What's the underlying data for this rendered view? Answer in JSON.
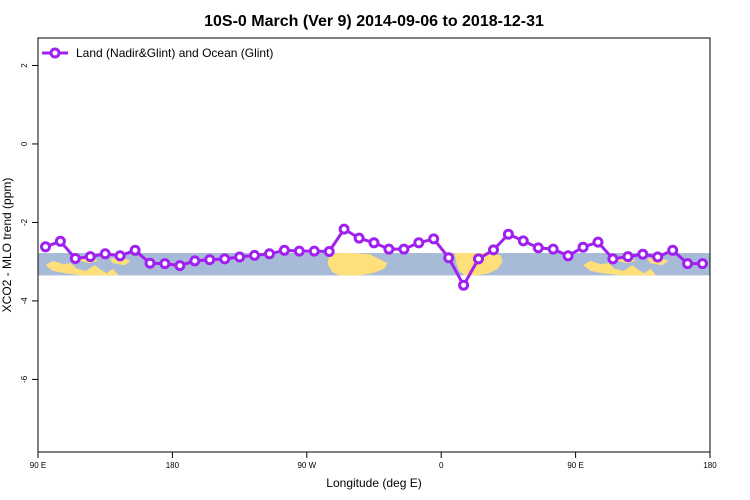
{
  "chart_data": {
    "type": "line",
    "title": "10S-0 March (Ver 9)   2014-09-06 to 2018-12-31",
    "xlabel": "Longitude (deg E)",
    "ylabel": "XCO2 - MLO trend (ppm)",
    "x_ticks": [
      {
        "value": 90,
        "label": "90 E"
      },
      {
        "value": 180,
        "label": "180"
      },
      {
        "value": 270,
        "label": "90 W"
      },
      {
        "value": 360,
        "label": "0"
      },
      {
        "value": 450,
        "label": "90 E"
      },
      {
        "value": 540,
        "label": "180"
      }
    ],
    "y_ticks": [
      {
        "value": 2,
        "label": "2"
      },
      {
        "value": 0,
        "label": "0"
      },
      {
        "value": -2,
        "label": "-2"
      },
      {
        "value": -4,
        "label": "-4"
      },
      {
        "value": -6,
        "label": "-6"
      }
    ],
    "xlim": [
      90,
      540
    ],
    "ylim": [
      -7.85,
      2.7
    ],
    "grid": false,
    "legend_position": "top-left",
    "series": [
      {
        "name": "Land (Nadir&Glint) and Ocean (Glint)",
        "color": "#a020f0",
        "x": [
          95,
          105,
          115,
          125,
          135,
          145,
          155,
          165,
          175,
          185,
          195,
          205,
          215,
          225,
          235,
          245,
          255,
          265,
          275,
          285,
          295,
          305,
          315,
          325,
          335,
          345,
          355,
          365,
          375,
          385,
          395,
          405,
          415,
          425,
          435,
          445,
          455,
          465,
          475,
          485,
          495,
          505,
          515,
          525,
          535
        ],
        "y": [
          -2.62,
          -2.48,
          -2.92,
          -2.87,
          -2.8,
          -2.85,
          -2.71,
          -3.04,
          -3.05,
          -3.1,
          -2.98,
          -2.95,
          -2.93,
          -2.88,
          -2.84,
          -2.8,
          -2.71,
          -2.73,
          -2.73,
          -2.74,
          -2.17,
          -2.4,
          -2.52,
          -2.68,
          -2.68,
          -2.52,
          -2.42,
          -2.9,
          -3.6,
          -2.93,
          -2.7,
          -2.3,
          -2.47,
          -2.65,
          -2.68,
          -2.85,
          -2.63,
          -2.5,
          -2.93,
          -2.87,
          -2.81,
          -2.88,
          -2.71,
          -3.05,
          -3.05
        ]
      }
    ],
    "background_band": {
      "ymin": -3.35,
      "ymax": -2.78,
      "ocean_color": "#a7bbd9",
      "land_color": "#fedf79"
    }
  }
}
